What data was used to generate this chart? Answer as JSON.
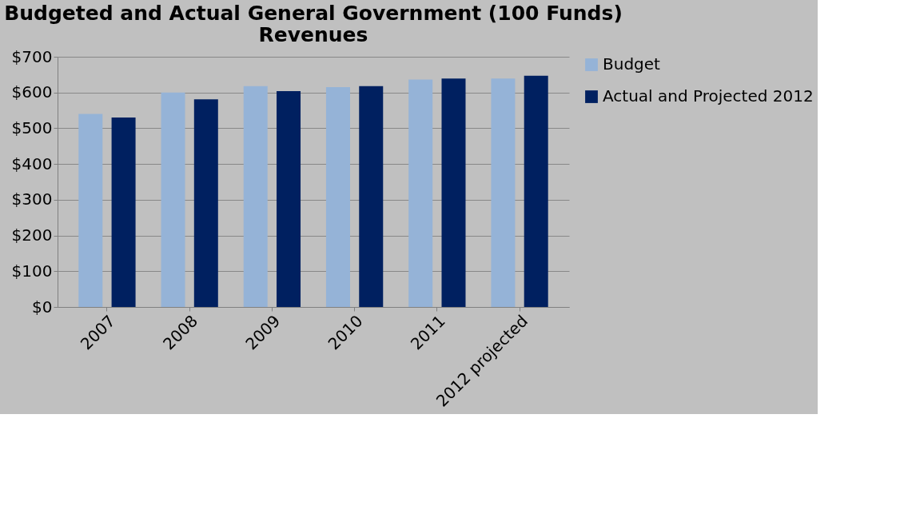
{
  "chart_data": {
    "type": "bar",
    "title": "Budgeted and Actual General Government (100 Funds) Revenues",
    "categories": [
      "2007",
      "2008",
      "2009",
      "2010",
      "2011",
      "2012 projected"
    ],
    "series": [
      {
        "name": "Budget",
        "color": "#95b3d7",
        "values": [
          540,
          600,
          618,
          615,
          636,
          639
        ]
      },
      {
        "name": "Actual and Projected 2012",
        "color": "#002060",
        "values": [
          530,
          581,
          604,
          618,
          639,
          647
        ]
      }
    ],
    "ylim": [
      0,
      700
    ],
    "yticks": [
      {
        "value": 0,
        "label": "$0"
      },
      {
        "value": 100,
        "label": "$100"
      },
      {
        "value": 200,
        "label": "$200"
      },
      {
        "value": 300,
        "label": "$300"
      },
      {
        "value": 400,
        "label": "$400"
      },
      {
        "value": 500,
        "label": "$500"
      },
      {
        "value": 600,
        "label": "$600"
      },
      {
        "value": 700,
        "label": "$700"
      }
    ],
    "grid": "y",
    "legend": "right"
  }
}
